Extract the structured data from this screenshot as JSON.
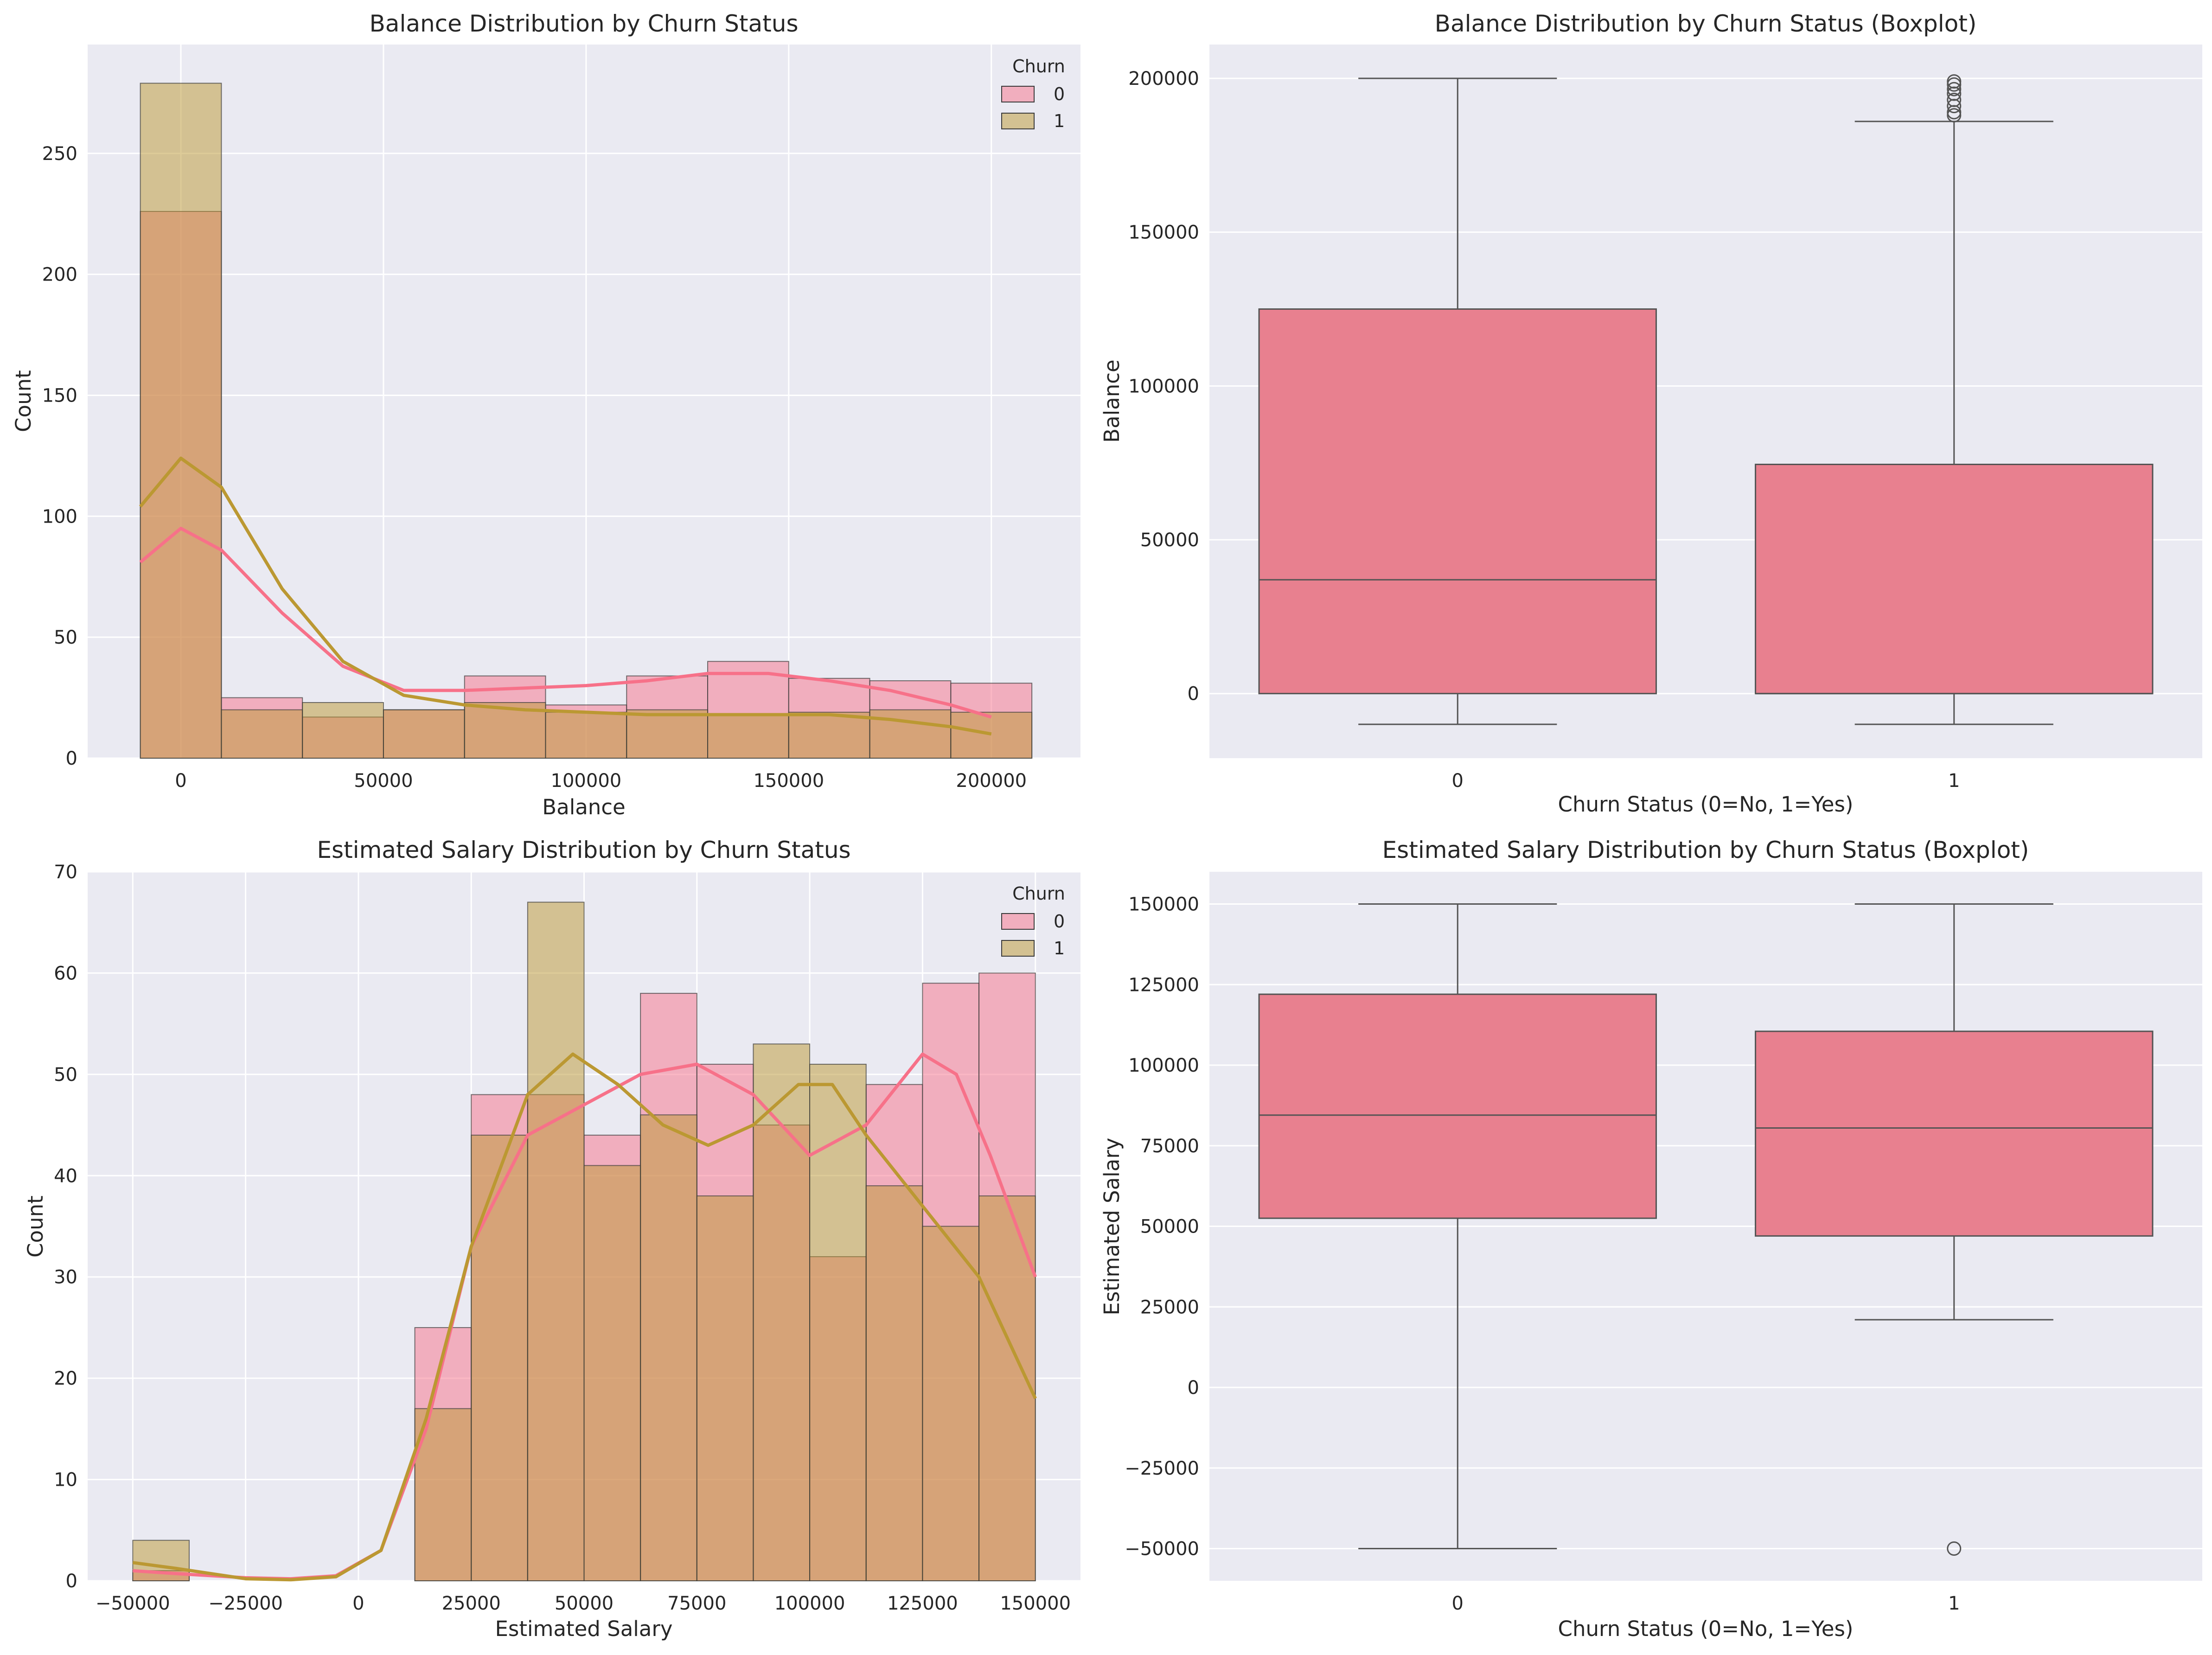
{
  "chart_data": [
    {
      "type": "histogram",
      "title": "Balance Distribution by Churn Status",
      "xlabel": "Balance",
      "ylabel": "Count",
      "xlim": [
        -23000,
        222000
      ],
      "ylim": [
        0,
        295
      ],
      "xticks": [
        0,
        50000,
        100000,
        150000,
        200000
      ],
      "yticks": [
        0,
        50,
        100,
        150,
        200,
        250
      ],
      "legend": {
        "title": "Churn",
        "position": "top-right"
      },
      "bin_edges": [
        -10000,
        10000,
        30000,
        50000,
        70000,
        90000,
        110000,
        130000,
        150000,
        170000,
        190000,
        210000
      ],
      "series": [
        {
          "name": "0",
          "color": "#f77189",
          "counts": [
            226,
            25,
            17,
            20,
            34,
            22,
            34,
            40,
            33,
            32,
            31
          ],
          "kde": [
            [
              -10000,
              81
            ],
            [
              0,
              95
            ],
            [
              10000,
              86
            ],
            [
              25000,
              60
            ],
            [
              40000,
              38
            ],
            [
              55000,
              28
            ],
            [
              70000,
              28
            ],
            [
              85000,
              29
            ],
            [
              100000,
              30
            ],
            [
              115000,
              32
            ],
            [
              130000,
              35
            ],
            [
              145000,
              35
            ],
            [
              160000,
              32
            ],
            [
              175000,
              28
            ],
            [
              190000,
              22
            ],
            [
              200000,
              17
            ]
          ]
        },
        {
          "name": "1",
          "color": "#bb9832",
          "counts": [
            279,
            20,
            23,
            20,
            23,
            19,
            20,
            18,
            19,
            20,
            19
          ],
          "kde": [
            [
              -10000,
              104
            ],
            [
              0,
              124
            ],
            [
              10000,
              112
            ],
            [
              25000,
              70
            ],
            [
              40000,
              40
            ],
            [
              55000,
              26
            ],
            [
              70000,
              22
            ],
            [
              85000,
              20
            ],
            [
              100000,
              19
            ],
            [
              115000,
              18
            ],
            [
              130000,
              18
            ],
            [
              145000,
              18
            ],
            [
              160000,
              18
            ],
            [
              175000,
              16
            ],
            [
              190000,
              13
            ],
            [
              200000,
              10
            ]
          ]
        }
      ]
    },
    {
      "type": "box",
      "title": "Balance Distribution by Churn Status (Boxplot)",
      "xlabel": "Churn Status (0=No, 1=Yes)",
      "ylabel": "Balance",
      "ylim": [
        -21000,
        211000
      ],
      "yticks": [
        0,
        50000,
        100000,
        150000,
        200000
      ],
      "categories": [
        "0",
        "1"
      ],
      "box_color": "#e8808f",
      "boxes": [
        {
          "category": "0",
          "whisker_low": -10000,
          "q1": 0,
          "median": 37000,
          "q3": 125000,
          "whisker_high": 200000,
          "outliers": []
        },
        {
          "category": "1",
          "whisker_low": -10000,
          "q1": 0,
          "median": 0,
          "q3": 74500,
          "whisker_high": 186000,
          "outliers": [
            188000,
            189000,
            191000,
            193000,
            195000,
            196500,
            198000,
            199000
          ]
        }
      ]
    },
    {
      "type": "histogram",
      "title": "Estimated Salary Distribution by Churn Status",
      "xlabel": "Estimated Salary",
      "ylabel": "Count",
      "xlim": [
        -60000,
        160000
      ],
      "ylim": [
        0,
        70
      ],
      "xticks": [
        -50000,
        -25000,
        0,
        25000,
        50000,
        75000,
        100000,
        125000,
        150000
      ],
      "yticks": [
        0,
        10,
        20,
        30,
        40,
        50,
        60,
        70
      ],
      "legend": {
        "title": "Churn",
        "position": "top-right"
      },
      "bin_edges": [
        -50000,
        -37500,
        -25000,
        -12500,
        0,
        12500,
        25000,
        37500,
        50000,
        62500,
        75000,
        87500,
        100000,
        112500,
        125000,
        137500,
        150000
      ],
      "series": [
        {
          "name": "0",
          "color": "#f77189",
          "counts": [
            1,
            0,
            0,
            0,
            0,
            25,
            48,
            48,
            44,
            58,
            51,
            45,
            32,
            49,
            59,
            60
          ],
          "kde": [
            [
              -50000,
              1
            ],
            [
              -40000,
              0.7
            ],
            [
              -25000,
              0.3
            ],
            [
              -15000,
              0.2
            ],
            [
              -5000,
              0.5
            ],
            [
              5000,
              3
            ],
            [
              15000,
              15
            ],
            [
              25000,
              33
            ],
            [
              37500,
              44
            ],
            [
              50000,
              47
            ],
            [
              62500,
              50
            ],
            [
              75000,
              51
            ],
            [
              87500,
              48
            ],
            [
              100000,
              42
            ],
            [
              112500,
              45
            ],
            [
              125000,
              52
            ],
            [
              132500,
              50
            ],
            [
              140000,
              42
            ],
            [
              150000,
              30
            ]
          ]
        },
        {
          "name": "1",
          "color": "#bb9832",
          "counts": [
            4,
            0,
            0,
            0,
            0,
            17,
            44,
            67,
            41,
            46,
            38,
            53,
            51,
            39,
            35,
            38
          ],
          "kde": [
            [
              -50000,
              1.8
            ],
            [
              -40000,
              1.2
            ],
            [
              -25000,
              0.2
            ],
            [
              -15000,
              0.1
            ],
            [
              -5000,
              0.4
            ],
            [
              5000,
              3
            ],
            [
              15000,
              16
            ],
            [
              25000,
              33
            ],
            [
              37500,
              48
            ],
            [
              47500,
              52
            ],
            [
              57500,
              49
            ],
            [
              67500,
              45
            ],
            [
              77500,
              43
            ],
            [
              87500,
              45
            ],
            [
              97500,
              49
            ],
            [
              105000,
              49
            ],
            [
              112500,
              44
            ],
            [
              125000,
              37
            ],
            [
              137500,
              30
            ],
            [
              150000,
              18
            ]
          ]
        }
      ]
    },
    {
      "type": "box",
      "title": "Estimated Salary Distribution by Churn Status (Boxplot)",
      "xlabel": "Churn Status (0=No, 1=Yes)",
      "ylabel": "Estimated Salary",
      "ylim": [
        -60000,
        160000
      ],
      "yticks": [
        -50000,
        -25000,
        0,
        25000,
        50000,
        75000,
        100000,
        125000,
        150000
      ],
      "categories": [
        "0",
        "1"
      ],
      "box_color": "#e8808f",
      "boxes": [
        {
          "category": "0",
          "whisker_low": -50000,
          "q1": 52500,
          "median": 84500,
          "q3": 122000,
          "whisker_high": 150000,
          "outliers": []
        },
        {
          "category": "1",
          "whisker_low": 21000,
          "q1": 47000,
          "median": 80500,
          "q3": 110500,
          "whisker_high": 150000,
          "outliers": [
            -50000
          ]
        }
      ]
    }
  ]
}
